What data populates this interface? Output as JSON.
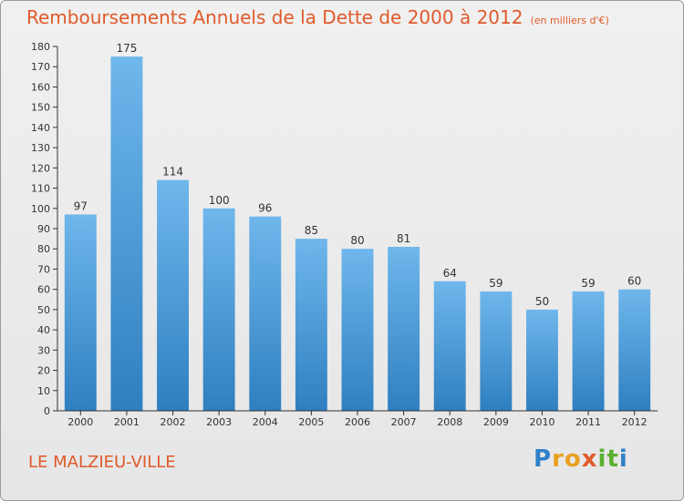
{
  "header": {
    "title": "Remboursements Annuels de la Dette de 2000 à 2012",
    "unit": "(en milliers d'€)"
  },
  "footer": {
    "city": "LE MALZIEU-VILLE",
    "logo_text": "Proxiti",
    "logo_letters": [
      "P",
      "r",
      "o",
      "x",
      "i",
      "t",
      "i"
    ],
    "logo_colors": [
      "#2f7fc8",
      "#e8a020",
      "#e8a020",
      "#e05a2a",
      "#5ab030",
      "#5ab030",
      "#2f7fc8"
    ]
  },
  "colors": {
    "accent": "#e05a2a",
    "bar_top": "#6fb7ec",
    "bar_bottom": "#2f7fc0",
    "axis": "#333333"
  },
  "chart_data": {
    "type": "bar",
    "title": "Remboursements Annuels de la Dette de 2000 à 2012",
    "xlabel": "",
    "ylabel": "",
    "categories": [
      "2000",
      "2001",
      "2002",
      "2003",
      "2004",
      "2005",
      "2006",
      "2007",
      "2008",
      "2009",
      "2010",
      "2011",
      "2012"
    ],
    "values": [
      97,
      175,
      114,
      100,
      96,
      85,
      80,
      81,
      64,
      59,
      50,
      59,
      60
    ],
    "ylim": [
      0,
      180
    ],
    "yticks": [
      0,
      10,
      20,
      30,
      40,
      50,
      60,
      70,
      80,
      90,
      100,
      110,
      120,
      130,
      140,
      150,
      160,
      170,
      180
    ],
    "grid": false,
    "legend": "none"
  }
}
